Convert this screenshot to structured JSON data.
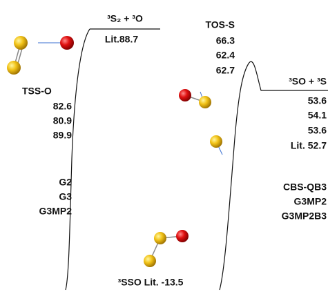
{
  "labels": {
    "reactant": {
      "name": "³S₂ + ³O",
      "lit": "Lit.88.7"
    },
    "tos": {
      "name": "TOS-S",
      "values": [
        66.3,
        62.4,
        62.7
      ]
    },
    "product": {
      "name": "³SO + ³S",
      "values": [
        53.6,
        54.1,
        53.6
      ],
      "lit": "Lit. 52.7"
    },
    "tss": {
      "name": "TSS-O",
      "values": [
        82.6,
        80.9,
        89.9
      ]
    },
    "methods_left": [
      "G2",
      "G3",
      "G3MP2"
    ],
    "methods_right": [
      "CBS-QB3",
      "G3MP2",
      "G3MP2B3"
    ],
    "minimum": "³SSO Lit. -13.5"
  }
}
